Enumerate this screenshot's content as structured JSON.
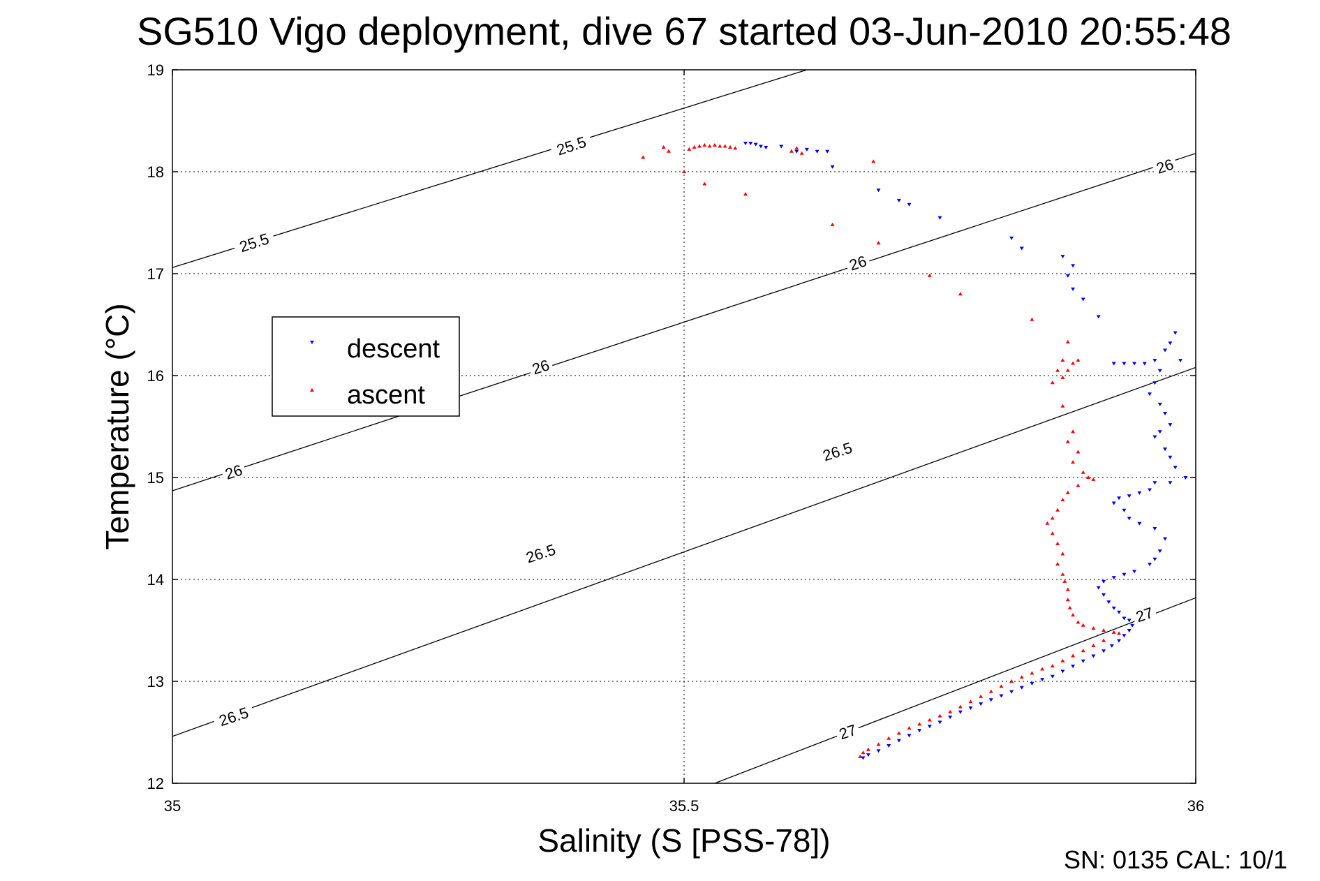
{
  "chart_data": {
    "type": "scatter",
    "title": "SG510 Vigo deployment, dive 67 started 03-Jun-2010 20:55:48",
    "xlabel": "Salinity (S [PSS-78])",
    "ylabel": "Temperature (°C)",
    "xlim": [
      35,
      36
    ],
    "ylim": [
      12,
      19
    ],
    "x_ticks": [
      "35",
      "35.5",
      "36"
    ],
    "y_ticks": [
      "12",
      "13",
      "14",
      "15",
      "16",
      "17",
      "18",
      "19"
    ],
    "grid": true,
    "legend_position": "left-middle",
    "footer": "SN: 0135  CAL: 10/1",
    "density_contours": [
      {
        "label": "25.5",
        "points": [
          [
            35.0,
            17.06
          ],
          [
            35.62,
            19.0
          ]
        ]
      },
      {
        "label": "26",
        "points": [
          [
            35.0,
            14.87
          ],
          [
            36.0,
            18.18
          ]
        ]
      },
      {
        "label": "26.5",
        "points": [
          [
            35.0,
            12.46
          ],
          [
            36.0,
            16.08
          ]
        ]
      },
      {
        "label": "27",
        "points": [
          [
            35.53,
            12.0
          ],
          [
            36.0,
            13.82
          ]
        ]
      }
    ],
    "contour_labels": [
      {
        "text": "25.5",
        "x": 35.08,
        "y": 17.3
      },
      {
        "text": "25.5",
        "x": 35.39,
        "y": 18.25
      },
      {
        "text": "26",
        "x": 35.06,
        "y": 15.05
      },
      {
        "text": "26",
        "x": 35.36,
        "y": 16.08
      },
      {
        "text": "26",
        "x": 35.67,
        "y": 17.1
      },
      {
        "text": "26",
        "x": 35.97,
        "y": 18.05
      },
      {
        "text": "26.5",
        "x": 35.06,
        "y": 12.65
      },
      {
        "text": "26.5",
        "x": 35.36,
        "y": 14.25
      },
      {
        "text": "26.5",
        "x": 35.65,
        "y": 15.25
      },
      {
        "text": "27",
        "x": 35.66,
        "y": 12.5
      },
      {
        "text": "27",
        "x": 35.95,
        "y": 13.65
      }
    ],
    "series": [
      {
        "name": "descent",
        "color": "#0000ff",
        "marker": "triangle-down",
        "points": [
          [
            35.56,
            18.28
          ],
          [
            35.565,
            18.28
          ],
          [
            35.57,
            18.27
          ],
          [
            35.575,
            18.25
          ],
          [
            35.58,
            18.24
          ],
          [
            35.595,
            18.25
          ],
          [
            35.61,
            18.2
          ],
          [
            35.62,
            18.22
          ],
          [
            35.63,
            18.2
          ],
          [
            35.64,
            18.2
          ],
          [
            35.645,
            18.05
          ],
          [
            35.69,
            17.82
          ],
          [
            35.71,
            17.72
          ],
          [
            35.72,
            17.68
          ],
          [
            35.75,
            17.55
          ],
          [
            35.82,
            17.35
          ],
          [
            35.83,
            17.25
          ],
          [
            35.87,
            17.17
          ],
          [
            35.88,
            17.08
          ],
          [
            35.875,
            16.98
          ],
          [
            35.88,
            16.85
          ],
          [
            35.89,
            16.75
          ],
          [
            35.905,
            16.58
          ],
          [
            35.92,
            16.12
          ],
          [
            35.93,
            16.12
          ],
          [
            35.94,
            16.12
          ],
          [
            35.95,
            16.12
          ],
          [
            35.96,
            16.15
          ],
          [
            35.965,
            16.05
          ],
          [
            35.97,
            16.25
          ],
          [
            35.975,
            16.32
          ],
          [
            35.98,
            16.42
          ],
          [
            35.985,
            16.15
          ],
          [
            35.96,
            15.93
          ],
          [
            35.955,
            15.82
          ],
          [
            35.965,
            15.72
          ],
          [
            35.97,
            15.63
          ],
          [
            35.975,
            15.52
          ],
          [
            35.965,
            15.45
          ],
          [
            35.96,
            15.4
          ],
          [
            35.97,
            15.28
          ],
          [
            35.975,
            15.2
          ],
          [
            35.98,
            15.1
          ],
          [
            35.99,
            15.0
          ],
          [
            35.975,
            14.95
          ],
          [
            35.96,
            14.95
          ],
          [
            35.955,
            14.88
          ],
          [
            35.945,
            14.85
          ],
          [
            35.935,
            14.82
          ],
          [
            35.925,
            14.8
          ],
          [
            35.92,
            14.75
          ],
          [
            35.93,
            14.68
          ],
          [
            35.935,
            14.6
          ],
          [
            35.945,
            14.55
          ],
          [
            35.96,
            14.5
          ],
          [
            35.97,
            14.4
          ],
          [
            35.965,
            14.28
          ],
          [
            35.96,
            14.2
          ],
          [
            35.955,
            14.15
          ],
          [
            35.94,
            14.08
          ],
          [
            35.93,
            14.05
          ],
          [
            35.92,
            14.02
          ],
          [
            35.91,
            13.98
          ],
          [
            35.905,
            13.92
          ],
          [
            35.91,
            13.85
          ],
          [
            35.915,
            13.78
          ],
          [
            35.92,
            13.72
          ],
          [
            35.925,
            13.68
          ],
          [
            35.93,
            13.62
          ],
          [
            35.935,
            13.6
          ],
          [
            35.938,
            13.55
          ],
          [
            35.935,
            13.5
          ],
          [
            35.93,
            13.45
          ],
          [
            35.925,
            13.4
          ],
          [
            35.918,
            13.35
          ],
          [
            35.91,
            13.3
          ],
          [
            35.9,
            13.25
          ],
          [
            35.89,
            13.2
          ],
          [
            35.88,
            13.15
          ],
          [
            35.87,
            13.1
          ],
          [
            35.86,
            13.05
          ],
          [
            35.85,
            13.02
          ],
          [
            35.84,
            12.98
          ],
          [
            35.83,
            12.94
          ],
          [
            35.82,
            12.9
          ],
          [
            35.81,
            12.86
          ],
          [
            35.8,
            12.82
          ],
          [
            35.79,
            12.78
          ],
          [
            35.78,
            12.74
          ],
          [
            35.77,
            12.7
          ],
          [
            35.76,
            12.65
          ],
          [
            35.75,
            12.6
          ],
          [
            35.74,
            12.56
          ],
          [
            35.73,
            12.52
          ],
          [
            35.72,
            12.47
          ],
          [
            35.71,
            12.42
          ],
          [
            35.7,
            12.37
          ],
          [
            35.69,
            12.32
          ],
          [
            35.68,
            12.28
          ],
          [
            35.675,
            12.25
          ]
        ]
      },
      {
        "name": "ascent",
        "color": "#ff0000",
        "marker": "triangle-up",
        "points": [
          [
            35.46,
            18.14
          ],
          [
            35.48,
            18.24
          ],
          [
            35.485,
            18.2
          ],
          [
            35.5,
            18.0
          ],
          [
            35.505,
            18.22
          ],
          [
            35.51,
            18.24
          ],
          [
            35.515,
            18.25
          ],
          [
            35.52,
            18.26
          ],
          [
            35.525,
            18.25
          ],
          [
            35.53,
            18.26
          ],
          [
            35.535,
            18.25
          ],
          [
            35.54,
            18.25
          ],
          [
            35.545,
            18.24
          ],
          [
            35.55,
            18.23
          ],
          [
            35.52,
            17.88
          ],
          [
            35.56,
            17.78
          ],
          [
            35.605,
            18.2
          ],
          [
            35.61,
            18.23
          ],
          [
            35.615,
            18.18
          ],
          [
            35.685,
            18.1
          ],
          [
            35.645,
            17.48
          ],
          [
            35.69,
            17.3
          ],
          [
            35.74,
            16.98
          ],
          [
            35.77,
            16.8
          ],
          [
            35.84,
            16.55
          ],
          [
            35.875,
            16.33
          ],
          [
            35.87,
            16.15
          ],
          [
            35.865,
            16.05
          ],
          [
            35.86,
            15.93
          ],
          [
            35.87,
            15.98
          ],
          [
            35.875,
            16.05
          ],
          [
            35.88,
            16.12
          ],
          [
            35.885,
            16.15
          ],
          [
            35.87,
            15.7
          ],
          [
            35.88,
            15.45
          ],
          [
            35.875,
            15.35
          ],
          [
            35.885,
            15.25
          ],
          [
            35.88,
            15.15
          ],
          [
            35.89,
            15.05
          ],
          [
            35.895,
            15.0
          ],
          [
            35.9,
            14.98
          ],
          [
            35.885,
            14.92
          ],
          [
            35.875,
            14.85
          ],
          [
            35.87,
            14.78
          ],
          [
            35.865,
            14.68
          ],
          [
            35.86,
            14.6
          ],
          [
            35.855,
            14.55
          ],
          [
            35.86,
            14.45
          ],
          [
            35.865,
            14.35
          ],
          [
            35.87,
            14.25
          ],
          [
            35.865,
            14.15
          ],
          [
            35.87,
            14.05
          ],
          [
            35.872,
            13.98
          ],
          [
            35.875,
            13.9
          ],
          [
            35.875,
            13.8
          ],
          [
            35.877,
            13.72
          ],
          [
            35.88,
            13.65
          ],
          [
            35.885,
            13.58
          ],
          [
            35.89,
            13.55
          ],
          [
            35.9,
            13.52
          ],
          [
            35.91,
            13.5
          ],
          [
            35.92,
            13.48
          ],
          [
            35.925,
            13.47
          ],
          [
            35.91,
            13.4
          ],
          [
            35.9,
            13.35
          ],
          [
            35.89,
            13.3
          ],
          [
            35.88,
            13.25
          ],
          [
            35.87,
            13.2
          ],
          [
            35.86,
            13.15
          ],
          [
            35.85,
            13.12
          ],
          [
            35.84,
            13.08
          ],
          [
            35.83,
            13.04
          ],
          [
            35.82,
            13.0
          ],
          [
            35.81,
            12.95
          ],
          [
            35.8,
            12.9
          ],
          [
            35.79,
            12.85
          ],
          [
            35.78,
            12.8
          ],
          [
            35.77,
            12.75
          ],
          [
            35.76,
            12.7
          ],
          [
            35.75,
            12.66
          ],
          [
            35.74,
            12.62
          ],
          [
            35.73,
            12.58
          ],
          [
            35.72,
            12.54
          ],
          [
            35.71,
            12.49
          ],
          [
            35.7,
            12.44
          ],
          [
            35.69,
            12.38
          ],
          [
            35.68,
            12.33
          ],
          [
            35.675,
            12.3
          ],
          [
            35.672,
            12.26
          ]
        ]
      }
    ]
  }
}
